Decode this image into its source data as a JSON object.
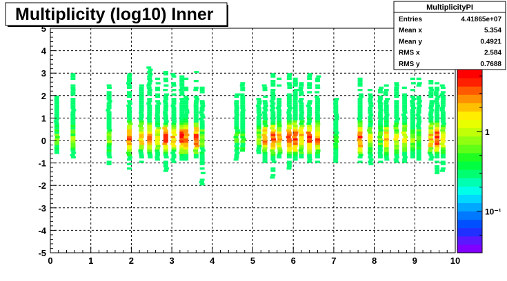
{
  "chart_data": {
    "type": "heatmap",
    "title": "Multiplicity (log10) Inner",
    "xlim": [
      0,
      10
    ],
    "ylim": [
      -5,
      5
    ],
    "x_ticks": [
      "0",
      "1",
      "2",
      "3",
      "4",
      "5",
      "6",
      "7",
      "8",
      "9",
      "10"
    ],
    "y_ticks": [
      "-5",
      "-4",
      "-3",
      "-2",
      "-1",
      "0",
      "1",
      "2",
      "3",
      "4",
      "5"
    ],
    "grid": true,
    "stats": {
      "name": "MultiplicityPI",
      "rows": [
        {
          "label": "Entries",
          "value": "4.41865e+07"
        },
        {
          "label": "Mean x",
          "value": "5.354"
        },
        {
          "label": "Mean y",
          "value": "0.4921"
        },
        {
          "label": "RMS x",
          "value": "2.584"
        },
        {
          "label": "RMS y",
          "value": "0.7688"
        }
      ]
    },
    "z_scale": "log",
    "z_labels": [
      {
        "value": 1,
        "label": "1"
      },
      {
        "value": 0.1,
        "label": "10⁻¹"
      }
    ],
    "palette": [
      "#7f00ff",
      "#5a18ff",
      "#2030ff",
      "#0050ff",
      "#0078ff",
      "#00a8ff",
      "#00d8ff",
      "#00ffe8",
      "#00ffb0",
      "#00ff70",
      "#00ff40",
      "#20ff20",
      "#60ff18",
      "#90ff10",
      "#c0ff08",
      "#e8ff00",
      "#ffee00",
      "#ffc000",
      "#ff9000",
      "#ff5a00",
      "#ff2000",
      "#ff0000"
    ],
    "columns": [
      {
        "x": 0.16,
        "ymin": -0.6,
        "ymax": 2.0,
        "peak": 0.55
      },
      {
        "x": 0.56,
        "ymin": -0.9,
        "ymax": 3.0,
        "peak": 0.6
      },
      {
        "x": 1.45,
        "ymin": -1.1,
        "ymax": 2.5,
        "peak": 0.6
      },
      {
        "x": 1.95,
        "ymin": -1.3,
        "ymax": 3.0,
        "peak": 0.9
      },
      {
        "x": 2.25,
        "ymin": -1.1,
        "ymax": 2.8,
        "peak": 0.8
      },
      {
        "x": 2.45,
        "ymin": -0.8,
        "ymax": 3.4,
        "peak": 0.85
      },
      {
        "x": 2.65,
        "ymin": -0.9,
        "ymax": 2.9,
        "peak": 0.7
      },
      {
        "x": 2.85,
        "ymin": -1.4,
        "ymax": 3.1,
        "peak": 0.9
      },
      {
        "x": 3.05,
        "ymin": -1.0,
        "ymax": 3.0,
        "peak": 0.8
      },
      {
        "x": 3.25,
        "ymin": -1.0,
        "ymax": 3.0,
        "peak": 0.95
      },
      {
        "x": 3.35,
        "ymin": -0.9,
        "ymax": 2.8,
        "peak": 0.9
      },
      {
        "x": 3.6,
        "ymin": -1.0,
        "ymax": 3.1,
        "peak": 0.9
      },
      {
        "x": 3.75,
        "ymin": -2.0,
        "ymax": 2.4,
        "peak": 0.6
      },
      {
        "x": 4.6,
        "ymin": -1.0,
        "ymax": 2.2,
        "peak": 0.5
      },
      {
        "x": 4.75,
        "ymin": -0.5,
        "ymax": 2.6,
        "peak": 0.55
      },
      {
        "x": 5.15,
        "ymin": -0.6,
        "ymax": 2.0,
        "peak": 0.6
      },
      {
        "x": 5.3,
        "ymin": -1.0,
        "ymax": 2.5,
        "peak": 0.85
      },
      {
        "x": 5.5,
        "ymin": -1.9,
        "ymax": 3.0,
        "peak": 0.9
      },
      {
        "x": 5.65,
        "ymin": -1.0,
        "ymax": 2.9,
        "peak": 0.8
      },
      {
        "x": 5.9,
        "ymin": -1.3,
        "ymax": 3.1,
        "peak": 0.9
      },
      {
        "x": 6.05,
        "ymin": -1.0,
        "ymax": 3.0,
        "peak": 0.95
      },
      {
        "x": 6.2,
        "ymin": -1.2,
        "ymax": 2.6,
        "peak": 0.8
      },
      {
        "x": 6.4,
        "ymin": -1.0,
        "ymax": 3.0,
        "peak": 0.9
      },
      {
        "x": 6.6,
        "ymin": -1.0,
        "ymax": 3.0,
        "peak": 0.85
      },
      {
        "x": 7.05,
        "ymin": -1.0,
        "ymax": 1.9,
        "peak": 0.5
      },
      {
        "x": 7.65,
        "ymin": -1.0,
        "ymax": 2.9,
        "peak": 0.9
      },
      {
        "x": 7.9,
        "ymin": -1.1,
        "ymax": 2.3,
        "peak": 0.7
      },
      {
        "x": 8.15,
        "ymin": -1.0,
        "ymax": 2.4,
        "peak": 0.55
      },
      {
        "x": 8.3,
        "ymin": -0.9,
        "ymax": 2.6,
        "peak": 0.8
      },
      {
        "x": 8.55,
        "ymin": -1.0,
        "ymax": 2.6,
        "peak": 0.7
      },
      {
        "x": 8.75,
        "ymin": -1.0,
        "ymax": 2.4,
        "peak": 0.75
      },
      {
        "x": 8.95,
        "ymin": -0.8,
        "ymax": 2.8,
        "peak": 0.6
      },
      {
        "x": 9.1,
        "ymin": -0.9,
        "ymax": 2.9,
        "peak": 0.55
      },
      {
        "x": 9.4,
        "ymin": -1.2,
        "ymax": 2.9,
        "peak": 0.8
      },
      {
        "x": 9.55,
        "ymin": -1.5,
        "ymax": 2.6,
        "peak": 0.95
      },
      {
        "x": 9.7,
        "ymin": -1.6,
        "ymax": 2.5,
        "peak": 0.7
      }
    ]
  }
}
